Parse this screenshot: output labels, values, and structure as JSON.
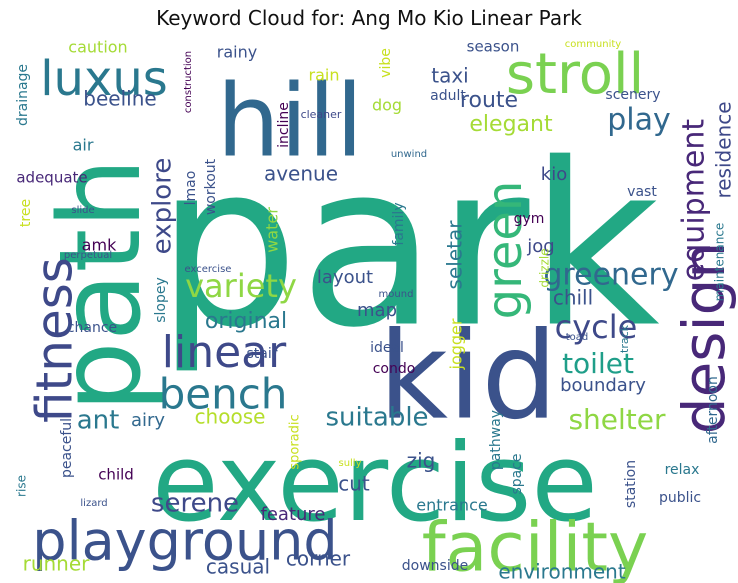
{
  "title": "Keyword Cloud for: Ang Mo Kio Linear Park",
  "words": [
    {
      "text": "park",
      "color": "#22a884"
    },
    {
      "text": "kid",
      "color": "#3b528b"
    },
    {
      "text": "exercise",
      "color": "#22a884"
    },
    {
      "text": "path",
      "color": "#22a884"
    },
    {
      "text": "hill",
      "color": "#31688e"
    },
    {
      "text": "facility",
      "color": "#7ad151"
    },
    {
      "text": "playground",
      "color": "#3b528b"
    },
    {
      "text": "stroll",
      "color": "#7ad151"
    },
    {
      "text": "design",
      "color": "#482878"
    },
    {
      "text": "fitness",
      "color": "#3e4989"
    },
    {
      "text": "luxus",
      "color": "#2a788e"
    },
    {
      "text": "green",
      "color": "#35b779"
    },
    {
      "text": "linear",
      "color": "#3e4989"
    },
    {
      "text": "bench",
      "color": "#2a788e"
    },
    {
      "text": "equipment",
      "color": "#482878"
    },
    {
      "text": "variety",
      "color": "#8fd744"
    },
    {
      "text": "greenery",
      "color": "#31688e"
    },
    {
      "text": "cycle",
      "color": "#3e4989"
    },
    {
      "text": "toilet",
      "color": "#1f9e89"
    },
    {
      "text": "suitable",
      "color": "#2a788e"
    },
    {
      "text": "shelter",
      "color": "#8fd744"
    },
    {
      "text": "play",
      "color": "#31688e"
    },
    {
      "text": "explore",
      "color": "#3e4989"
    },
    {
      "text": "serene",
      "color": "#3e4989"
    },
    {
      "text": "ant",
      "color": "#2a788e"
    },
    {
      "text": "residence",
      "color": "#3e4989"
    },
    {
      "text": "elegant",
      "color": "#a5db36"
    },
    {
      "text": "route",
      "color": "#3b528b"
    },
    {
      "text": "beeline",
      "color": "#3b528b"
    },
    {
      "text": "original",
      "color": "#2a788e"
    },
    {
      "text": "seletar",
      "color": "#2a788e"
    },
    {
      "text": "avenue",
      "color": "#3b528b"
    },
    {
      "text": "layout",
      "color": "#3b528b"
    },
    {
      "text": "boundary",
      "color": "#3b528b"
    },
    {
      "text": "chill",
      "color": "#3b528b"
    },
    {
      "text": "feature",
      "color": "#482878"
    },
    {
      "text": "cut",
      "color": "#3b528b"
    },
    {
      "text": "zig",
      "color": "#3b528b"
    },
    {
      "text": "casual",
      "color": "#3b528b"
    },
    {
      "text": "corner",
      "color": "#3b528b"
    },
    {
      "text": "environment",
      "color": "#2a788e"
    },
    {
      "text": "runner",
      "color": "#a5db36"
    },
    {
      "text": "choose",
      "color": "#b5de2b"
    },
    {
      "text": "airy",
      "color": "#31688e"
    },
    {
      "text": "map",
      "color": "#3b528b"
    },
    {
      "text": "taxi",
      "color": "#3b528b"
    },
    {
      "text": "jog",
      "color": "#3e4989"
    },
    {
      "text": "kio",
      "color": "#3e4989"
    },
    {
      "text": "amk",
      "color": "#440154"
    },
    {
      "text": "gym",
      "color": "#440154"
    },
    {
      "text": "caution",
      "color": "#a5db36"
    },
    {
      "text": "rainy",
      "color": "#3b528b"
    },
    {
      "text": "rain",
      "color": "#c8e020"
    },
    {
      "text": "vibe",
      "color": "#c8e020"
    },
    {
      "text": "season",
      "color": "#3b528b"
    },
    {
      "text": "adult",
      "color": "#3b528b"
    },
    {
      "text": "dog",
      "color": "#a5db36"
    },
    {
      "text": "scenery",
      "color": "#3b528b"
    },
    {
      "text": "maintenance",
      "color": "#2a788e"
    },
    {
      "text": "afternoon",
      "color": "#31688e"
    },
    {
      "text": "drainage",
      "color": "#2a788e"
    },
    {
      "text": "air",
      "color": "#2a788e"
    },
    {
      "text": "adequate",
      "color": "#482878"
    },
    {
      "text": "tree",
      "color": "#c8e020"
    },
    {
      "text": "incline",
      "color": "#440154"
    },
    {
      "text": "construction",
      "color": "#440154"
    },
    {
      "text": "cleaner",
      "color": "#3e4989"
    },
    {
      "text": "community",
      "color": "#c8e020"
    },
    {
      "text": "unwind",
      "color": "#31688e"
    },
    {
      "text": "drizzle",
      "color": "#a5db36"
    },
    {
      "text": "family",
      "color": "#2a788e"
    },
    {
      "text": "water",
      "color": "#8fd744"
    },
    {
      "text": "workout",
      "color": "#3b528b"
    },
    {
      "text": "lmao",
      "color": "#3b528b"
    },
    {
      "text": "slide",
      "color": "#3b528b"
    },
    {
      "text": "perpetual",
      "color": "#3b528b"
    },
    {
      "text": "excercise",
      "color": "#3b528b"
    },
    {
      "text": "slopey",
      "color": "#2a788e"
    },
    {
      "text": "chance",
      "color": "#3b528b"
    },
    {
      "text": "jogger",
      "color": "#c8e020"
    },
    {
      "text": "mound",
      "color": "#3b528b"
    },
    {
      "text": "ideal",
      "color": "#3b528b"
    },
    {
      "text": "condo",
      "color": "#440154"
    },
    {
      "text": "stair",
      "color": "#3b528b"
    },
    {
      "text": "vast",
      "color": "#3b528b"
    },
    {
      "text": "toad",
      "color": "#3b528b"
    },
    {
      "text": "track",
      "color": "#2a788e"
    },
    {
      "text": "peaceful",
      "color": "#3b528b"
    },
    {
      "text": "rise",
      "color": "#2a788e"
    },
    {
      "text": "child",
      "color": "#440154"
    },
    {
      "text": "sporadic",
      "color": "#c8e020"
    },
    {
      "text": "sully",
      "color": "#c8e020"
    },
    {
      "text": "pathway",
      "color": "#2a788e"
    },
    {
      "text": "space",
      "color": "#2a788e"
    },
    {
      "text": "station",
      "color": "#3b528b"
    },
    {
      "text": "relax",
      "color": "#2a788e"
    },
    {
      "text": "public",
      "color": "#3b528b"
    },
    {
      "text": "entrance",
      "color": "#2a788e"
    },
    {
      "text": "lizard",
      "color": "#3b528b"
    },
    {
      "text": "downside",
      "color": "#3b528b"
    }
  ]
}
